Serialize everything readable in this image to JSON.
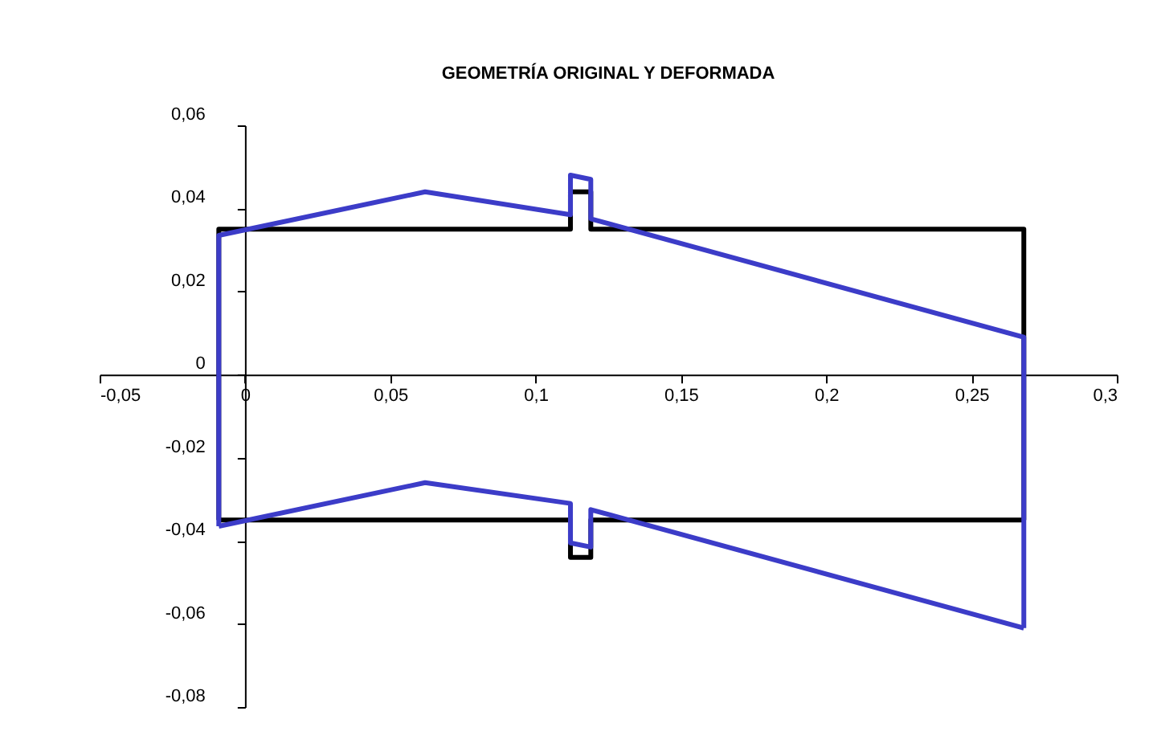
{
  "chart_data": {
    "type": "line",
    "title": "GEOMETRÍA ORIGINAL Y DEFORMADA",
    "series": [
      {
        "color": "#000000",
        "x": [
          -0.009,
          -0.009,
          0.112,
          0.112,
          0.119,
          0.119,
          0.268,
          0.268
        ],
        "values": [
          -0.035,
          0.035,
          0.035,
          0.044,
          0.044,
          0.035,
          0.035,
          -0.035
        ]
      },
      {
        "color": "#000000",
        "x": [
          -0.009,
          0.112,
          0.112,
          0.119,
          0.119,
          0.268
        ],
        "values": [
          -0.035,
          -0.035,
          -0.044,
          -0.044,
          -0.035,
          -0.035
        ]
      },
      {
        "color": "#3c3cc8",
        "x": [
          -0.009,
          -0.009,
          0.062,
          0.112,
          0.112,
          0.119,
          0.119,
          0.268,
          0.268
        ],
        "values": [
          -0.0365,
          0.0335,
          0.044,
          0.0385,
          0.048,
          0.047,
          0.0375,
          0.009,
          -0.061
        ]
      },
      {
        "color": "#3c3cc8",
        "x": [
          -0.009,
          0.062,
          0.112,
          0.112,
          0.119,
          0.119,
          0.268
        ],
        "values": [
          -0.0365,
          -0.026,
          -0.031,
          -0.0405,
          -0.0415,
          -0.0325,
          -0.061
        ]
      }
    ],
    "xlim": [
      -0.05,
      0.3
    ],
    "xticks": [
      {
        "value": -0.05,
        "label": "-0,05"
      },
      0,
      {
        "value": 0.05,
        "label": "0,05"
      },
      {
        "value": 0.1,
        "label": "0,1"
      },
      {
        "value": 0.15,
        "label": "0,15"
      },
      {
        "value": 0.2,
        "label": "0,2"
      },
      {
        "value": 0.25,
        "label": "0,25"
      },
      {
        "value": 0.3,
        "label": "0,3"
      }
    ],
    "ylim": [
      -0.08,
      0.06
    ],
    "yticks": [
      {
        "value": -0.08,
        "label": "-0,08"
      },
      {
        "value": -0.06,
        "label": "-0,06"
      },
      {
        "value": -0.04,
        "label": "-0,04"
      },
      {
        "value": -0.02,
        "label": "-0,02"
      },
      0,
      {
        "value": 0.02,
        "label": "0,02"
      },
      {
        "value": 0.04,
        "label": "0,04"
      },
      {
        "value": 0.06,
        "label": "0,06"
      }
    ],
    "grid": false,
    "legend": false,
    "marker": "none",
    "line_style": "solid"
  }
}
